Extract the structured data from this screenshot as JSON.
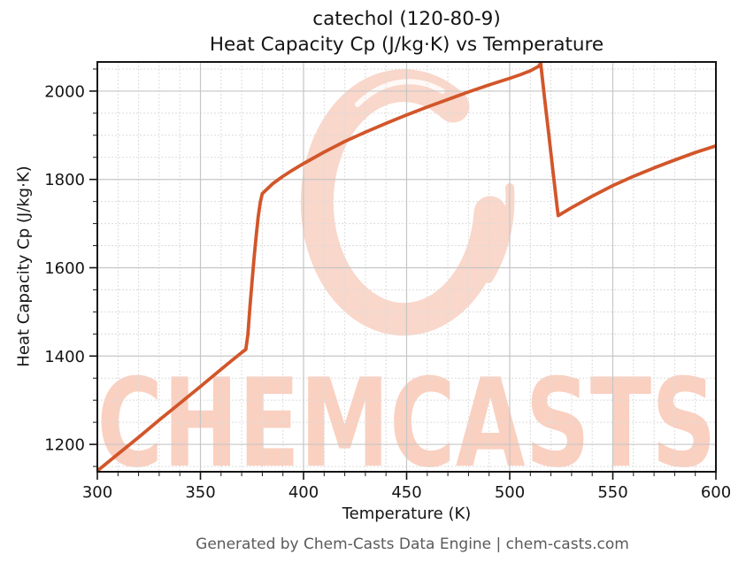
{
  "watermark": {
    "text": "CHEMCASTS",
    "logo": "chemcasts-c-swirl-logo",
    "text_color": "#fad0c0",
    "logo_color": "#f9d7ca",
    "logo_highlight_color": "#ffffff"
  },
  "footer_text": "Generated by Chem-Casts Data Engine | chem-casts.com",
  "chart_data": {
    "type": "line",
    "title_lines": [
      "catechol (120-80-9)",
      "Heat Capacity Cp (J/kg·K) vs Temperature"
    ],
    "xlabel": "Temperature (K)",
    "ylabel": "Heat Capacity Cp (J/kg·K)",
    "xlim": [
      300,
      600
    ],
    "ylim": [
      1138,
      2066
    ],
    "x_major_ticks": [
      300,
      350,
      400,
      450,
      500,
      550,
      600
    ],
    "y_major_ticks": [
      1200,
      1400,
      1600,
      1800,
      2000
    ],
    "x_minor_step": 10,
    "y_minor_step": 50,
    "grid": "major-solid-minor-dashed",
    "legend": "none",
    "line_color": "#d2562a",
    "axis_color": "#141414",
    "major_grid_color": "#c6c6c6",
    "minor_grid_color": "#dcdcdc",
    "series": [
      {
        "name": "Heat Capacity Cp (J/kg·K)",
        "points": [
          [
            300,
            1140
          ],
          [
            310,
            1178
          ],
          [
            320,
            1216
          ],
          [
            330,
            1255
          ],
          [
            340,
            1293
          ],
          [
            350,
            1331
          ],
          [
            360,
            1370
          ],
          [
            366,
            1393
          ],
          [
            370,
            1408
          ],
          [
            372,
            1415
          ],
          [
            373,
            1448
          ],
          [
            374,
            1510
          ],
          [
            375,
            1568
          ],
          [
            376,
            1622
          ],
          [
            377,
            1670
          ],
          [
            378,
            1714
          ],
          [
            379,
            1748
          ],
          [
            380,
            1768
          ],
          [
            385,
            1790
          ],
          [
            390,
            1807
          ],
          [
            395,
            1822
          ],
          [
            400,
            1836
          ],
          [
            410,
            1862
          ],
          [
            420,
            1886
          ],
          [
            430,
            1907
          ],
          [
            440,
            1927
          ],
          [
            450,
            1946
          ],
          [
            460,
            1964
          ],
          [
            470,
            1981
          ],
          [
            480,
            1998
          ],
          [
            490,
            2014
          ],
          [
            500,
            2029
          ],
          [
            505,
            2037
          ],
          [
            510,
            2046
          ],
          [
            514,
            2056
          ],
          [
            515,
            2063
          ],
          [
            517,
            1980
          ],
          [
            519,
            1899
          ],
          [
            521,
            1818
          ],
          [
            523,
            1737
          ],
          [
            523.5,
            1718
          ],
          [
            530,
            1736
          ],
          [
            540,
            1762
          ],
          [
            550,
            1786
          ],
          [
            560,
            1807
          ],
          [
            570,
            1826
          ],
          [
            580,
            1844
          ],
          [
            590,
            1861
          ],
          [
            600,
            1876
          ]
        ]
      }
    ]
  }
}
